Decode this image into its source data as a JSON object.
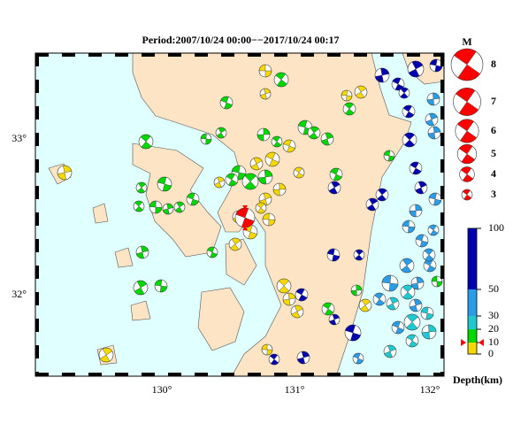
{
  "title": "Period:2007/10/24 00:00−−2017/10/24 00:17",
  "map": {
    "lat_labels": [
      "33°",
      "32°"
    ],
    "lon_labels": [
      "130°",
      "131°",
      "132°"
    ]
  },
  "magnitude_legend": {
    "title": "M",
    "magnitudes": [
      8,
      7,
      6,
      5,
      4,
      3
    ]
  },
  "depth_scale": {
    "label": "Depth(km)",
    "ticks": [
      100,
      50,
      30,
      20,
      10,
      0
    ]
  }
}
